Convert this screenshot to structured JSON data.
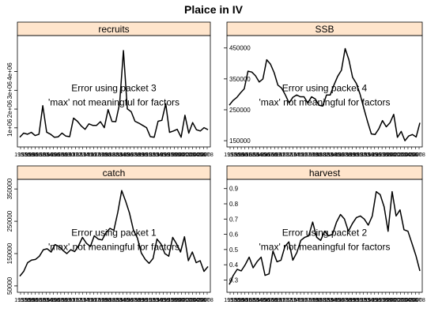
{
  "chart_data": {
    "type": "line",
    "title": "Plaice in IV",
    "x_tick_labels": [
      "1957",
      "1958",
      "1959",
      "1960",
      "1961",
      "1962",
      "1963",
      "1964",
      "1965",
      "1966",
      "1967",
      "1968",
      "1969",
      "1970",
      "1971",
      "1972",
      "1973",
      "1974",
      "1975",
      "1976",
      "1977",
      "1978",
      "1979",
      "1980",
      "1981",
      "1982",
      "1983",
      "1984",
      "1985",
      "1986",
      "1987",
      "1988",
      "1989",
      "1990",
      "1991",
      "1992",
      "1993",
      "1994",
      "1995",
      "1996",
      "1997",
      "1998",
      "1999",
      "2000",
      "2001",
      "2002",
      "2003",
      "2004",
      "2005",
      "2006",
      "2007",
      "2008"
    ],
    "panels": [
      {
        "name": "recruits",
        "ylim": [
          150000,
          5750000
        ],
        "yticks": [
          1000000,
          2000000,
          3000000,
          4000000
        ],
        "ytick_labels": [
          "1e+06",
          "2e+06",
          "3e+06",
          "4e+06"
        ],
        "y": [
          500000,
          720000,
          660000,
          760000,
          590000,
          660000,
          2180000,
          770000,
          660000,
          500000,
          520000,
          720000,
          560000,
          530000,
          1520000,
          1350000,
          1100000,
          920000,
          1210000,
          1130000,
          1130000,
          1330000,
          1010000,
          1970000,
          1340000,
          1330000,
          2300000,
          5120000,
          2010000,
          1860000,
          1350000,
          1250000,
          1130000,
          1010000,
          530000,
          500000,
          1350000,
          1400000,
          2280000,
          760000,
          830000,
          920000,
          500000,
          1670000,
          720000,
          1280000,
          900000,
          830000,
          1010000,
          900000
        ],
        "error_lines": [
          "Error using packet 3",
          "'max' not meaningful for factors"
        ]
      },
      {
        "name": "SSB",
        "ylim": [
          140000,
          480000
        ],
        "yticks": [
          150000,
          250000,
          350000,
          450000
        ],
        "ytick_labels": [
          "150000",
          "250000",
          "350000",
          "450000"
        ],
        "y": [
          265000,
          280000,
          290000,
          305000,
          318000,
          375000,
          372000,
          360000,
          340000,
          350000,
          412000,
          398000,
          370000,
          330000,
          320000,
          298000,
          272000,
          290000,
          298000,
          292000,
          292000,
          272000,
          292000,
          285000,
          265000,
          262000,
          298000,
          298000,
          330000,
          358000,
          378000,
          448000,
          412000,
          355000,
          335000,
          300000,
          255000,
          212000,
          172000,
          170000,
          188000,
          215000,
          195000,
          208000,
          235000,
          161000,
          180000,
          150000,
          165000,
          170000,
          162000,
          208000
        ],
        "error_lines": [
          "Error using packet 4",
          "'max' not meaningful for factors"
        ]
      },
      {
        "name": "catch",
        "ylim": [
          40000,
          370000
        ],
        "yticks": [
          50000,
          150000,
          250000,
          350000
        ],
        "ytick_labels": [
          "50000",
          "150000",
          "250000",
          "350000"
        ],
        "y": [
          80000,
          95000,
          122000,
          130000,
          132000,
          142000,
          162000,
          165000,
          155000,
          178000,
          172000,
          160000,
          150000,
          162000,
          156000,
          175000,
          200000,
          182000,
          172000,
          205000,
          195000,
          192000,
          215000,
          228000,
          222000,
          278000,
          345000,
          312000,
          275000,
          222000,
          198000,
          152000,
          132000,
          120000,
          135000,
          195000,
          180000,
          150000,
          142000,
          200000,
          180000,
          155000,
          202000,
          128000,
          155000,
          122000,
          128000,
          95000,
          110000
        ],
        "error_lines": [
          "Error using packet 1",
          "'max' not meaningful for factors"
        ]
      },
      {
        "name": "harvest",
        "ylim": [
          0.24,
          0.94
        ],
        "yticks": [
          0.3,
          0.4,
          0.5,
          0.6,
          0.7,
          0.8,
          0.9
        ],
        "ytick_labels": [
          "0.3",
          "0.4",
          "0.5",
          "0.6",
          "0.7",
          "0.8",
          "0.9"
        ],
        "y": [
          0.27,
          0.33,
          0.37,
          0.36,
          0.4,
          0.45,
          0.38,
          0.42,
          0.45,
          0.33,
          0.34,
          0.49,
          0.42,
          0.43,
          0.52,
          0.55,
          0.43,
          0.48,
          0.56,
          0.58,
          0.59,
          0.68,
          0.58,
          0.56,
          0.62,
          0.59,
          0.6,
          0.68,
          0.73,
          0.7,
          0.62,
          0.67,
          0.71,
          0.72,
          0.7,
          0.66,
          0.72,
          0.88,
          0.86,
          0.78,
          0.62,
          0.88,
          0.72,
          0.76,
          0.63,
          0.62,
          0.54,
          0.46,
          0.36
        ],
        "error_lines": [
          "Error using packet 2",
          "'max' not meaningful for factors"
        ]
      }
    ]
  }
}
